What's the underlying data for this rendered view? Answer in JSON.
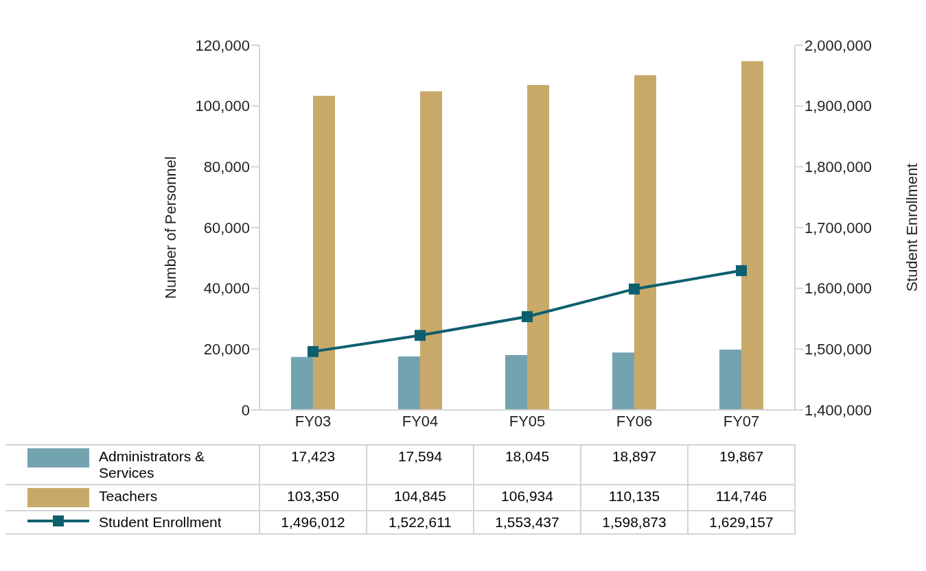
{
  "chart_data": {
    "type": "bar",
    "ylabel": "Number of Personnel",
    "y2label": "Student Enrollment",
    "categories": [
      "FY03",
      "FY04",
      "FY05",
      "FY06",
      "FY07"
    ],
    "series": [
      {
        "name": "Administrators & Services",
        "color": "#74a3b0",
        "values": [
          17423,
          17594,
          18045,
          18897,
          19867
        ],
        "value_labels": [
          "17,423",
          "17,594",
          "18,045",
          "18,897",
          "19,867"
        ]
      },
      {
        "name": "Teachers",
        "color": "#c9a96a",
        "values": [
          103350,
          104845,
          106934,
          110135,
          114746
        ],
        "value_labels": [
          "103,350",
          "104,845",
          "106,934",
          "110,135",
          "114,746"
        ]
      },
      {
        "name": "Student Enrollment",
        "type": "line",
        "axis": "y2",
        "color": "#0e5f6e",
        "marker": "square",
        "values": [
          1496012,
          1522611,
          1553437,
          1598873,
          1629157
        ],
        "value_labels": [
          "1,496,012",
          "1,522,611",
          "1,553,437",
          "1,598,873",
          "1,629,157"
        ]
      }
    ],
    "ylim": [
      0,
      120000
    ],
    "yticks": [
      0,
      {
        "value": 20000,
        "label": "20,000"
      },
      {
        "value": 40000,
        "label": "40,000"
      },
      {
        "value": 60000,
        "label": "60,000"
      },
      {
        "value": 80000,
        "label": "80,000"
      },
      {
        "value": 100000,
        "label": "100,000"
      },
      {
        "value": 120000,
        "label": "120,000"
      }
    ],
    "y2lim": [
      1400000,
      2000000
    ],
    "y2ticks": [
      {
        "value": 1400000,
        "label": "1,400,000"
      },
      {
        "value": 1500000,
        "label": "1,500,000"
      },
      {
        "value": 1600000,
        "label": "1,600,000"
      },
      {
        "value": 1700000,
        "label": "1,700,000"
      },
      {
        "value": 1800000,
        "label": "1,800,000"
      },
      {
        "value": 1900000,
        "label": "1,900,000"
      },
      {
        "value": 2000000,
        "label": "2,000,000"
      }
    ],
    "grid": false,
    "legend": "bottom"
  }
}
